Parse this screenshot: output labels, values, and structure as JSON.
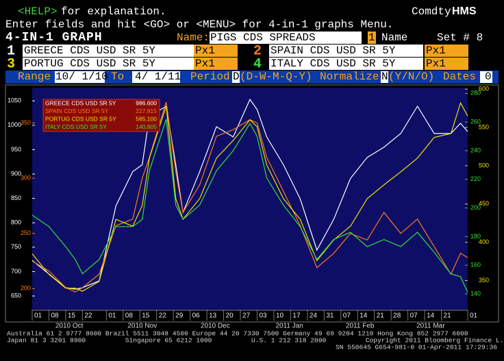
{
  "header": {
    "help_key": "<HELP>",
    "help_text": "for explanation.",
    "brand_prefix": "Comdty",
    "brand": "HMS",
    "instructions": "Enter fields and hit <GO> or <MENU> for 4-in-1 graphs Menu.",
    "screen_title": "4-IN-1 GRAPH",
    "name_label": "Name:",
    "name_value": "PIGS CDS SPREADS",
    "name_index": "1",
    "name_caption": "Name",
    "set_label": "Set # 8"
  },
  "fields": [
    {
      "number": "1",
      "security": "GREECE CDS USD SR 5Y",
      "field": "Px1"
    },
    {
      "number": "2",
      "security": "SPAIN CDS USD SR 5Y",
      "field": "Px1"
    },
    {
      "number": "3",
      "security": "PORTUG CDS USD SR 5Y",
      "field": "Px1"
    },
    {
      "number": "4",
      "security": "ITALY CDS USD SR 5Y",
      "field": "Px1"
    }
  ],
  "controls": {
    "range_label": "Range",
    "start": "10/ 1/10",
    "to_label": "To",
    "end": "4/ 1/11",
    "period_label": "Period",
    "period": "D",
    "period_options": "(D-W-M-Q-Y)",
    "normalize_label": "Normalize",
    "normalize": "N",
    "normalize_options": "(Y/N/O)",
    "dates_label": "Dates",
    "dates": "0"
  },
  "chart_data": {
    "type": "line",
    "x": [
      "2010-10-01",
      "2010-10-08",
      "2010-10-15",
      "2010-10-19",
      "2010-10-22",
      "2010-10-29",
      "2010-11-05",
      "2010-11-12",
      "2010-11-16",
      "2010-11-19",
      "2010-11-26",
      "2010-11-30",
      "2010-12-03",
      "2010-12-10",
      "2010-12-17",
      "2010-12-24",
      "2010-12-31",
      "2011-01-03",
      "2011-01-07",
      "2011-01-14",
      "2011-01-21",
      "2011-01-28",
      "2011-02-04",
      "2011-02-11",
      "2011-02-18",
      "2011-02-25",
      "2011-03-04",
      "2011-03-11",
      "2011-03-18",
      "2011-03-25",
      "2011-03-29",
      "2011-04-01"
    ],
    "xlim": [
      "2010-10-01",
      "2011-04-01"
    ],
    "xticks": [
      {
        "value": "2010-10-01",
        "label": "01"
      },
      {
        "value": "2010-10-08",
        "label": "08"
      },
      {
        "value": "2010-10-15",
        "label": "15"
      },
      {
        "value": "2010-10-22",
        "label": "22"
      },
      {
        "value": "2010-11-01",
        "label": "01"
      },
      {
        "value": "2010-11-08",
        "label": "08"
      },
      {
        "value": "2010-11-15",
        "label": "15"
      },
      {
        "value": "2010-11-22",
        "label": "22"
      },
      {
        "value": "2010-11-29",
        "label": "29"
      },
      {
        "value": "2010-12-06",
        "label": "06"
      },
      {
        "value": "2010-12-13",
        "label": "13"
      },
      {
        "value": "2010-12-20",
        "label": "20"
      },
      {
        "value": "2010-12-27",
        "label": "27"
      },
      {
        "value": "2011-01-03",
        "label": "03"
      },
      {
        "value": "2011-01-10",
        "label": "10"
      },
      {
        "value": "2011-01-17",
        "label": "17"
      },
      {
        "value": "2011-01-24",
        "label": "24"
      },
      {
        "value": "2011-01-31",
        "label": "31"
      },
      {
        "value": "2011-02-07",
        "label": "07"
      },
      {
        "value": "2011-02-14",
        "label": "14"
      },
      {
        "value": "2011-02-21",
        "label": "21"
      },
      {
        "value": "2011-02-28",
        "label": "28"
      },
      {
        "value": "2011-03-07",
        "label": "07"
      },
      {
        "value": "2011-03-14",
        "label": "14"
      },
      {
        "value": "2011-03-21",
        "label": "21"
      },
      {
        "value": "2011-04-01",
        "label": "01"
      }
    ],
    "x_groups": [
      {
        "label": "2010 Oct",
        "start": "2010-10-01",
        "end": "2010-11-01"
      },
      {
        "label": "2010 Nov",
        "start": "2010-11-01",
        "end": "2010-12-01"
      },
      {
        "label": "2010 Dec",
        "start": "2010-12-01",
        "end": "2011-01-01"
      },
      {
        "label": "2011 Jan",
        "start": "2011-01-01",
        "end": "2011-02-01"
      },
      {
        "label": "2011 Feb",
        "start": "2011-02-01",
        "end": "2011-03-01"
      },
      {
        "label": "2011 Mar",
        "start": "2011-03-01",
        "end": "2011-04-01"
      }
    ],
    "series": [
      {
        "name": "GREECE CDS USD SR 5Y",
        "color": "#ffffff",
        "axis": "left",
        "last_label": "986.600",
        "ylim": [
          622,
          1077
        ],
        "yticks": [
          650,
          700,
          750,
          800,
          850,
          900,
          950,
          1000,
          1050
        ],
        "values": [
          723,
          695,
          667,
          664,
          667,
          681,
          835,
          905,
          919,
          1018,
          1039,
          919,
          821,
          905,
          997,
          976,
          1053,
          1032,
          976,
          919,
          849,
          744,
          807,
          891,
          934,
          955,
          983,
          1039,
          983,
          983,
          1004,
          987
        ]
      },
      {
        "name": "SPAIN CDS USD SR 5Y",
        "color": "#ff7a1a",
        "axis": "left",
        "last_label": "227.815",
        "ylim": [
          181,
          382
        ],
        "yticks": [
          200,
          250,
          300,
          350
        ],
        "values": [
          225,
          216,
          201,
          197,
          201,
          213,
          257,
          263,
          300,
          319,
          369,
          306,
          269,
          294,
          338,
          344,
          353,
          350,
          319,
          288,
          257,
          219,
          232,
          250,
          244,
          269,
          250,
          263,
          238,
          213,
          232,
          228
        ]
      },
      {
        "name": "PORTUG CDS USD SR 5Y",
        "color": "#f0e000",
        "axis": "right",
        "last_label": "565.100",
        "ylim": [
          312,
          602
        ],
        "yticks": [
          350,
          400,
          450,
          500,
          550,
          600
        ],
        "values": [
          385,
          358,
          340,
          340,
          336,
          349,
          430,
          421,
          448,
          510,
          578,
          457,
          430,
          457,
          510,
          533,
          560,
          551,
          501,
          457,
          430,
          376,
          403,
          421,
          457,
          475,
          492,
          510,
          537,
          542,
          582,
          565
        ]
      },
      {
        "name": "ITALY CDS USD SR 5Y",
        "color": "#38e038",
        "axis": "right",
        "last_label": "140.805",
        "ylim": [
          129,
          284
        ],
        "yticks": [
          140,
          160,
          180,
          200,
          220,
          240,
          260,
          280
        ],
        "values": [
          195,
          187,
          173,
          164,
          154,
          164,
          187,
          187,
          192,
          226,
          262,
          202,
          192,
          202,
          226,
          240,
          259,
          250,
          221,
          202,
          187,
          164,
          178,
          183,
          173,
          178,
          173,
          183,
          169,
          154,
          152,
          141
        ]
      }
    ]
  },
  "footer": {
    "line1": "Australia 61 2 9777 8600 Brazil 5511 3048 4500 Europe 44 20 7330 7500 Germany 49 69 9204 1210 Hong Kong 852 2977 6000",
    "line2": "Japan 81 3 3201 8900          Singapore 65 6212 1000          U.S. 1 212 318 2000          Copyright 2011 Bloomberg Finance L.P.",
    "line3": "SN 550645 G654-981-0 01-Apr-2011 17:29:36"
  }
}
